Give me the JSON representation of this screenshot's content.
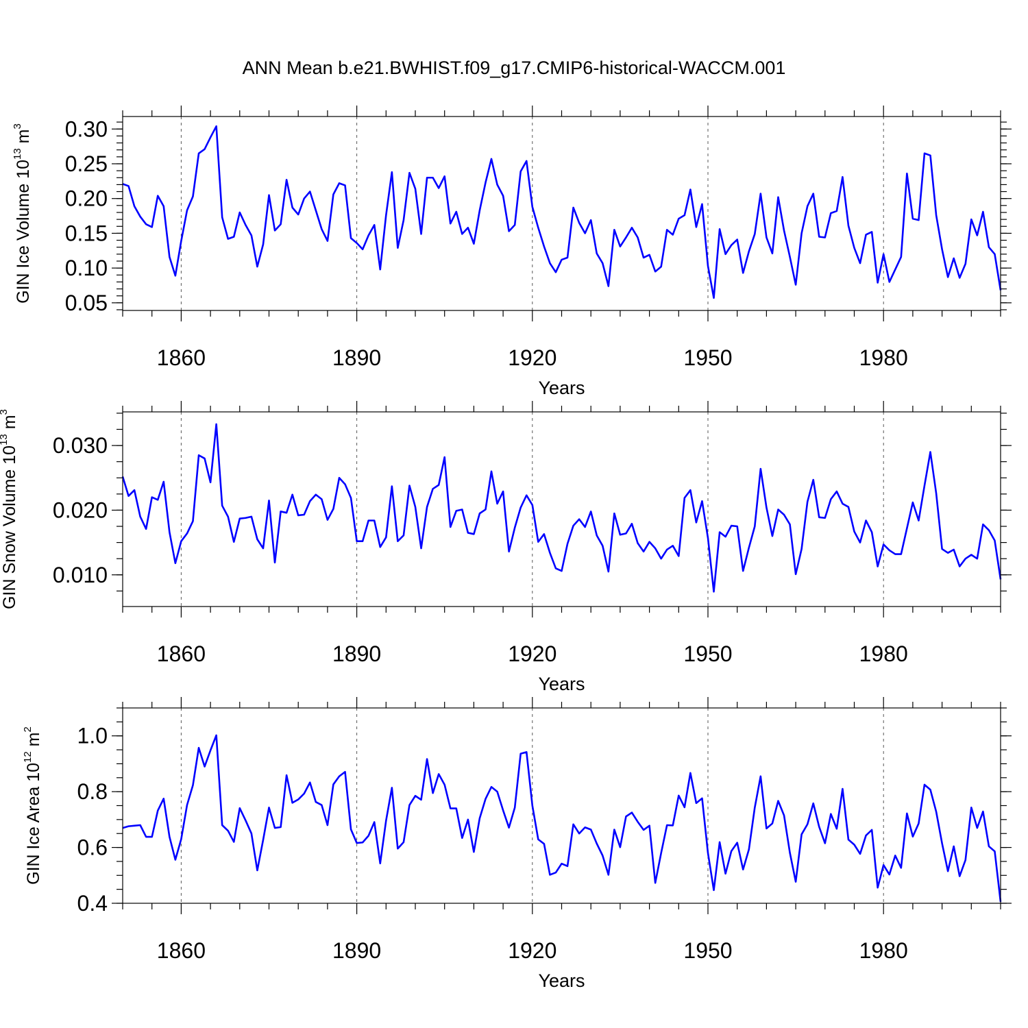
{
  "chart_data": {
    "title": "ANN Mean b.e21.BWHIST.f09_g17.CMIP6-historical-WACCM.001",
    "type": "line",
    "x_start": 1850,
    "x_end": 2000,
    "xlim": [
      1850,
      2000
    ],
    "xticks": [
      1860,
      1890,
      1920,
      1950,
      1980
    ],
    "grid": "dashed vertical lines at major x ticks",
    "panels": [
      {
        "id": "ice-volume",
        "ylabel_main": "GIN Ice Volume 10",
        "ylabel_exp": "13",
        "ylabel_unit": "m",
        "ylabel_unit_exp": "3",
        "xlabel": "Years",
        "ylim": [
          0.039,
          0.318
        ],
        "yticks": [
          0.05,
          0.1,
          0.15,
          0.2,
          0.25,
          0.3
        ],
        "ytick_labels": [
          "0.05",
          "0.10",
          "0.15",
          "0.20",
          "0.25",
          "0.30"
        ],
        "yminor": 0.01,
        "values": [
          0.221,
          0.218,
          0.189,
          0.174,
          0.163,
          0.159,
          0.204,
          0.189,
          0.116,
          0.089,
          0.139,
          0.183,
          0.203,
          0.265,
          0.271,
          0.288,
          0.304,
          0.173,
          0.142,
          0.145,
          0.18,
          0.162,
          0.147,
          0.102,
          0.134,
          0.205,
          0.154,
          0.163,
          0.227,
          0.187,
          0.177,
          0.2,
          0.21,
          0.183,
          0.156,
          0.139,
          0.206,
          0.222,
          0.219,
          0.143,
          0.136,
          0.127,
          0.147,
          0.162,
          0.098,
          0.176,
          0.238,
          0.129,
          0.169,
          0.237,
          0.214,
          0.149,
          0.23,
          0.23,
          0.215,
          0.232,
          0.164,
          0.181,
          0.149,
          0.158,
          0.135,
          0.183,
          0.223,
          0.257,
          0.22,
          0.204,
          0.153,
          0.162,
          0.239,
          0.254,
          0.188,
          0.158,
          0.131,
          0.107,
          0.094,
          0.112,
          0.115,
          0.187,
          0.165,
          0.15,
          0.169,
          0.121,
          0.107,
          0.074,
          0.155,
          0.131,
          0.144,
          0.158,
          0.144,
          0.115,
          0.119,
          0.095,
          0.102,
          0.155,
          0.148,
          0.171,
          0.176,
          0.213,
          0.159,
          0.192,
          0.103,
          0.057,
          0.156,
          0.12,
          0.133,
          0.141,
          0.093,
          0.124,
          0.149,
          0.207,
          0.144,
          0.121,
          0.202,
          0.154,
          0.116,
          0.076,
          0.15,
          0.189,
          0.207,
          0.145,
          0.144,
          0.179,
          0.182,
          0.231,
          0.161,
          0.129,
          0.107,
          0.148,
          0.152,
          0.079,
          0.12,
          0.08,
          0.098,
          0.116,
          0.236,
          0.171,
          0.169,
          0.265,
          0.262,
          0.176,
          0.127,
          0.087,
          0.114,
          0.086,
          0.106,
          0.17,
          0.147,
          0.181,
          0.13,
          0.12,
          0.068
        ]
      },
      {
        "id": "snow-volume",
        "ylabel_main": "GIN Snow Volume 10",
        "ylabel_exp": "13",
        "ylabel_unit": "m",
        "ylabel_unit_exp": "3",
        "xlabel": "Years",
        "ylim": [
          0.0051,
          0.0352
        ],
        "yticks": [
          0.01,
          0.02,
          0.03
        ],
        "ytick_labels": [
          "0.010",
          "0.020",
          "0.030"
        ],
        "yminor": 0.0025,
        "values": [
          0.0252,
          0.0222,
          0.0231,
          0.019,
          0.0171,
          0.022,
          0.0216,
          0.0244,
          0.0166,
          0.0118,
          0.0152,
          0.0164,
          0.0183,
          0.0285,
          0.028,
          0.0243,
          0.0333,
          0.0207,
          0.019,
          0.0151,
          0.0187,
          0.0188,
          0.019,
          0.0155,
          0.0141,
          0.0215,
          0.0119,
          0.0198,
          0.0196,
          0.0224,
          0.0192,
          0.0193,
          0.0214,
          0.0224,
          0.0217,
          0.0185,
          0.0202,
          0.025,
          0.024,
          0.0219,
          0.0152,
          0.0152,
          0.0184,
          0.0184,
          0.0143,
          0.0158,
          0.0237,
          0.0152,
          0.0161,
          0.0238,
          0.0205,
          0.0141,
          0.0205,
          0.0233,
          0.0239,
          0.0282,
          0.0174,
          0.0199,
          0.0201,
          0.0165,
          0.0163,
          0.0195,
          0.0201,
          0.026,
          0.021,
          0.0229,
          0.0136,
          0.0173,
          0.0204,
          0.0223,
          0.0208,
          0.0151,
          0.0163,
          0.0134,
          0.011,
          0.0106,
          0.0148,
          0.0176,
          0.0186,
          0.0174,
          0.0198,
          0.0161,
          0.0145,
          0.0105,
          0.0195,
          0.0162,
          0.0164,
          0.0179,
          0.0149,
          0.0136,
          0.0151,
          0.0141,
          0.0125,
          0.0139,
          0.0145,
          0.0129,
          0.0219,
          0.0231,
          0.0181,
          0.0214,
          0.0157,
          0.0074,
          0.0166,
          0.0159,
          0.0176,
          0.0175,
          0.0106,
          0.0142,
          0.0175,
          0.0264,
          0.0204,
          0.016,
          0.0201,
          0.0193,
          0.0178,
          0.0101,
          0.014,
          0.0213,
          0.0247,
          0.0189,
          0.0188,
          0.0217,
          0.0229,
          0.021,
          0.0205,
          0.0167,
          0.015,
          0.0184,
          0.0166,
          0.0113,
          0.0147,
          0.0138,
          0.0132,
          0.0132,
          0.0172,
          0.0212,
          0.0184,
          0.0238,
          0.029,
          0.0226,
          0.014,
          0.0134,
          0.0139,
          0.0113,
          0.0125,
          0.0131,
          0.0125,
          0.0178,
          0.0169,
          0.0153,
          0.0093
        ]
      },
      {
        "id": "ice-area",
        "ylabel_main": "GIN Ice Area 10",
        "ylabel_exp": "12",
        "ylabel_unit": "m",
        "ylabel_unit_exp": "2",
        "xlabel": "Years",
        "ylim": [
          0.4,
          1.1
        ],
        "yticks": [
          0.4,
          0.6,
          0.8,
          1.0
        ],
        "ytick_labels": [
          "0.4",
          "0.6",
          "0.8",
          "1.0"
        ],
        "yminor": 0.05,
        "values": [
          0.67,
          0.676,
          0.678,
          0.68,
          0.638,
          0.638,
          0.732,
          0.775,
          0.638,
          0.556,
          0.63,
          0.752,
          0.823,
          0.957,
          0.89,
          0.948,
          1.002,
          0.68,
          0.66,
          0.62,
          0.741,
          0.697,
          0.65,
          0.518,
          0.627,
          0.743,
          0.67,
          0.673,
          0.859,
          0.76,
          0.772,
          0.793,
          0.833,
          0.763,
          0.752,
          0.68,
          0.826,
          0.855,
          0.871,
          0.665,
          0.616,
          0.618,
          0.642,
          0.691,
          0.543,
          0.696,
          0.814,
          0.596,
          0.619,
          0.752,
          0.785,
          0.771,
          0.917,
          0.795,
          0.863,
          0.825,
          0.74,
          0.74,
          0.634,
          0.7,
          0.584,
          0.705,
          0.774,
          0.817,
          0.8,
          0.733,
          0.671,
          0.743,
          0.936,
          0.942,
          0.75,
          0.629,
          0.613,
          0.502,
          0.51,
          0.542,
          0.533,
          0.683,
          0.65,
          0.672,
          0.664,
          0.614,
          0.571,
          0.502,
          0.664,
          0.601,
          0.711,
          0.725,
          0.692,
          0.663,
          0.678,
          0.473,
          0.58,
          0.68,
          0.679,
          0.786,
          0.744,
          0.867,
          0.759,
          0.776,
          0.58,
          0.447,
          0.619,
          0.506,
          0.587,
          0.617,
          0.521,
          0.593,
          0.743,
          0.855,
          0.668,
          0.686,
          0.767,
          0.715,
          0.581,
          0.477,
          0.647,
          0.683,
          0.758,
          0.674,
          0.615,
          0.72,
          0.667,
          0.81,
          0.628,
          0.61,
          0.577,
          0.643,
          0.663,
          0.456,
          0.537,
          0.503,
          0.571,
          0.527,
          0.722,
          0.639,
          0.686,
          0.825,
          0.807,
          0.728,
          0.615,
          0.515,
          0.604,
          0.497,
          0.555,
          0.743,
          0.67,
          0.729,
          0.604,
          0.586,
          0.405
        ]
      }
    ]
  }
}
